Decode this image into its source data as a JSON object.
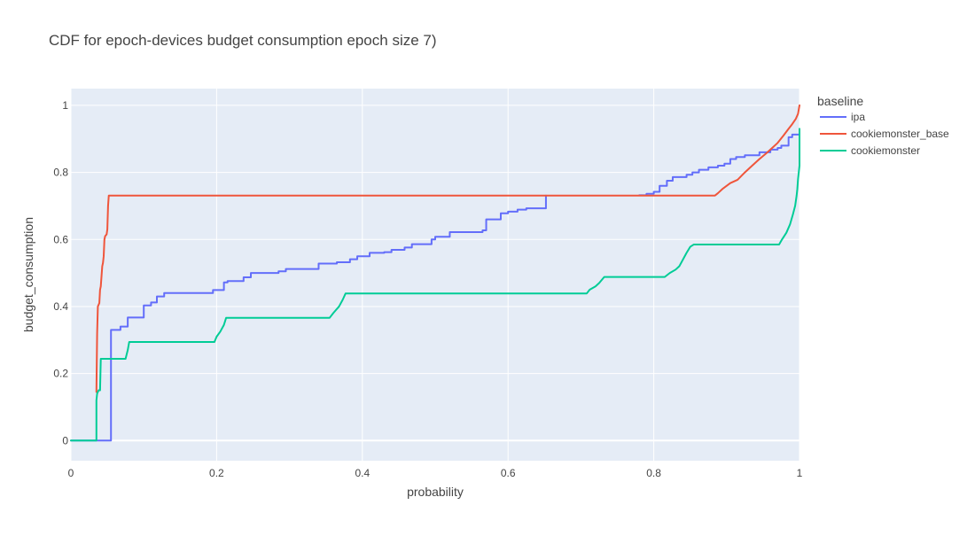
{
  "chart_data": {
    "type": "line",
    "title": "CDF for epoch-devices budget consumption epoch size 7)",
    "xlabel": "probability",
    "ylabel": "budget_consumption",
    "xlim": [
      0,
      1
    ],
    "ylim": [
      -0.06,
      1.05
    ],
    "x_ticks": [
      0,
      0.2,
      0.4,
      0.6,
      0.8,
      1
    ],
    "x_tick_labels": [
      "0",
      "0.2",
      "0.4",
      "0.6",
      "0.8",
      "1"
    ],
    "y_ticks": [
      0,
      0.2,
      0.4,
      0.6,
      0.8,
      1
    ],
    "y_tick_labels": [
      "0",
      "0.2",
      "0.4",
      "0.6",
      "0.8",
      "1"
    ],
    "grid": true,
    "legend": {
      "title": "baseline",
      "placement": "top-right, outside plot"
    },
    "colors": {
      "plot_bg": "#E5ECF6",
      "grid": "#FFFFFF"
    },
    "series": [
      {
        "name": "ipa",
        "color": "#636EFA",
        "points": [
          [
            0,
            0
          ],
          [
            0.055,
            0
          ],
          [
            0.055,
            0.33
          ],
          [
            0.068,
            0.33
          ],
          [
            0.068,
            0.34
          ],
          [
            0.078,
            0.34
          ],
          [
            0.078,
            0.367
          ],
          [
            0.1,
            0.367
          ],
          [
            0.1,
            0.403
          ],
          [
            0.11,
            0.403
          ],
          [
            0.11,
            0.412
          ],
          [
            0.118,
            0.412
          ],
          [
            0.118,
            0.43
          ],
          [
            0.128,
            0.43
          ],
          [
            0.128,
            0.44
          ],
          [
            0.195,
            0.44
          ],
          [
            0.195,
            0.449
          ],
          [
            0.21,
            0.449
          ],
          [
            0.21,
            0.472
          ],
          [
            0.215,
            0.472
          ],
          [
            0.215,
            0.476
          ],
          [
            0.237,
            0.476
          ],
          [
            0.237,
            0.487
          ],
          [
            0.247,
            0.487
          ],
          [
            0.247,
            0.5
          ],
          [
            0.285,
            0.5
          ],
          [
            0.285,
            0.505
          ],
          [
            0.295,
            0.505
          ],
          [
            0.295,
            0.512
          ],
          [
            0.34,
            0.512
          ],
          [
            0.34,
            0.528
          ],
          [
            0.365,
            0.528
          ],
          [
            0.365,
            0.532
          ],
          [
            0.383,
            0.532
          ],
          [
            0.383,
            0.541
          ],
          [
            0.393,
            0.541
          ],
          [
            0.393,
            0.55
          ],
          [
            0.41,
            0.55
          ],
          [
            0.41,
            0.56
          ],
          [
            0.43,
            0.56
          ],
          [
            0.43,
            0.562
          ],
          [
            0.44,
            0.562
          ],
          [
            0.44,
            0.569
          ],
          [
            0.458,
            0.569
          ],
          [
            0.458,
            0.576
          ],
          [
            0.468,
            0.576
          ],
          [
            0.468,
            0.586
          ],
          [
            0.495,
            0.586
          ],
          [
            0.495,
            0.6
          ],
          [
            0.5,
            0.6
          ],
          [
            0.5,
            0.608
          ],
          [
            0.52,
            0.608
          ],
          [
            0.52,
            0.622
          ],
          [
            0.565,
            0.622
          ],
          [
            0.565,
            0.627
          ],
          [
            0.57,
            0.627
          ],
          [
            0.57,
            0.66
          ],
          [
            0.59,
            0.66
          ],
          [
            0.59,
            0.678
          ],
          [
            0.6,
            0.678
          ],
          [
            0.6,
            0.683
          ],
          [
            0.613,
            0.683
          ],
          [
            0.613,
            0.689
          ],
          [
            0.625,
            0.689
          ],
          [
            0.625,
            0.693
          ],
          [
            0.652,
            0.693
          ],
          [
            0.652,
            0.731
          ]
        ]
      },
      {
        "name": "ipa",
        "color": "#636EFA",
        "showlegend": false,
        "points": [
          [
            0.78,
            0.732
          ],
          [
            0.79,
            0.732
          ],
          [
            0.79,
            0.736
          ],
          [
            0.8,
            0.736
          ],
          [
            0.8,
            0.742
          ],
          [
            0.808,
            0.742
          ],
          [
            0.808,
            0.76
          ],
          [
            0.818,
            0.76
          ],
          [
            0.818,
            0.775
          ],
          [
            0.826,
            0.775
          ],
          [
            0.826,
            0.786
          ],
          [
            0.845,
            0.786
          ],
          [
            0.845,
            0.793
          ],
          [
            0.853,
            0.793
          ],
          [
            0.853,
            0.8
          ],
          [
            0.862,
            0.8
          ],
          [
            0.862,
            0.808
          ],
          [
            0.875,
            0.808
          ],
          [
            0.875,
            0.815
          ],
          [
            0.888,
            0.815
          ],
          [
            0.888,
            0.82
          ],
          [
            0.897,
            0.82
          ],
          [
            0.897,
            0.826
          ],
          [
            0.905,
            0.826
          ],
          [
            0.905,
            0.84
          ],
          [
            0.913,
            0.84
          ],
          [
            0.913,
            0.846
          ],
          [
            0.925,
            0.846
          ],
          [
            0.925,
            0.851
          ],
          [
            0.945,
            0.851
          ],
          [
            0.945,
            0.86
          ],
          [
            0.96,
            0.86
          ],
          [
            0.96,
            0.868
          ],
          [
            0.97,
            0.868
          ],
          [
            0.97,
            0.873
          ],
          [
            0.975,
            0.873
          ],
          [
            0.975,
            0.88
          ],
          [
            0.985,
            0.88
          ],
          [
            0.985,
            0.905
          ],
          [
            0.99,
            0.905
          ],
          [
            0.99,
            0.913
          ],
          [
            1,
            0.913
          ]
        ]
      },
      {
        "name": "cookiemonster_base",
        "color": "#EF553B",
        "points": [
          [
            0.035,
            0.145
          ],
          [
            0.036,
            0.32
          ],
          [
            0.037,
            0.4
          ],
          [
            0.039,
            0.41
          ],
          [
            0.04,
            0.45
          ],
          [
            0.041,
            0.46
          ],
          [
            0.043,
            0.52
          ],
          [
            0.044,
            0.53
          ],
          [
            0.045,
            0.55
          ],
          [
            0.046,
            0.6
          ],
          [
            0.047,
            0.61
          ],
          [
            0.049,
            0.615
          ],
          [
            0.05,
            0.63
          ],
          [
            0.051,
            0.7
          ],
          [
            0.052,
            0.731
          ],
          [
            0.884,
            0.731
          ],
          [
            0.888,
            0.738
          ],
          [
            0.895,
            0.752
          ],
          [
            0.905,
            0.768
          ],
          [
            0.915,
            0.778
          ],
          [
            0.925,
            0.8
          ],
          [
            0.935,
            0.82
          ],
          [
            0.945,
            0.84
          ],
          [
            0.955,
            0.858
          ],
          [
            0.962,
            0.872
          ],
          [
            0.97,
            0.888
          ],
          [
            0.978,
            0.91
          ],
          [
            0.985,
            0.93
          ],
          [
            0.99,
            0.944
          ],
          [
            0.995,
            0.96
          ],
          [
            0.998,
            0.975
          ],
          [
            1,
            1.0
          ]
        ]
      },
      {
        "name": "cookiemonster",
        "color": "#00CC96",
        "points": [
          [
            0,
            0
          ],
          [
            0.035,
            0
          ],
          [
            0.035,
            0.12
          ],
          [
            0.036,
            0.14
          ],
          [
            0.038,
            0.15
          ],
          [
            0.04,
            0.15
          ],
          [
            0.041,
            0.244
          ],
          [
            0.075,
            0.244
          ],
          [
            0.078,
            0.27
          ],
          [
            0.08,
            0.294
          ],
          [
            0.197,
            0.294
          ],
          [
            0.2,
            0.31
          ],
          [
            0.205,
            0.325
          ],
          [
            0.21,
            0.345
          ],
          [
            0.213,
            0.366
          ],
          [
            0.355,
            0.366
          ],
          [
            0.36,
            0.38
          ],
          [
            0.368,
            0.4
          ],
          [
            0.373,
            0.42
          ],
          [
            0.377,
            0.439
          ],
          [
            0.708,
            0.439
          ],
          [
            0.712,
            0.45
          ],
          [
            0.72,
            0.46
          ],
          [
            0.725,
            0.47
          ],
          [
            0.732,
            0.488
          ],
          [
            0.815,
            0.488
          ],
          [
            0.822,
            0.5
          ],
          [
            0.83,
            0.51
          ],
          [
            0.835,
            0.52
          ],
          [
            0.84,
            0.54
          ],
          [
            0.845,
            0.56
          ],
          [
            0.85,
            0.578
          ],
          [
            0.855,
            0.585
          ],
          [
            0.972,
            0.585
          ],
          [
            0.976,
            0.6
          ],
          [
            0.982,
            0.62
          ],
          [
            0.987,
            0.645
          ],
          [
            0.991,
            0.675
          ],
          [
            0.994,
            0.7
          ],
          [
            0.996,
            0.73
          ],
          [
            0.997,
            0.75
          ],
          [
            0.998,
            0.78
          ],
          [
            0.999,
            0.8
          ],
          [
            1,
            0.82
          ],
          [
            1,
            0.93
          ]
        ]
      }
    ]
  }
}
